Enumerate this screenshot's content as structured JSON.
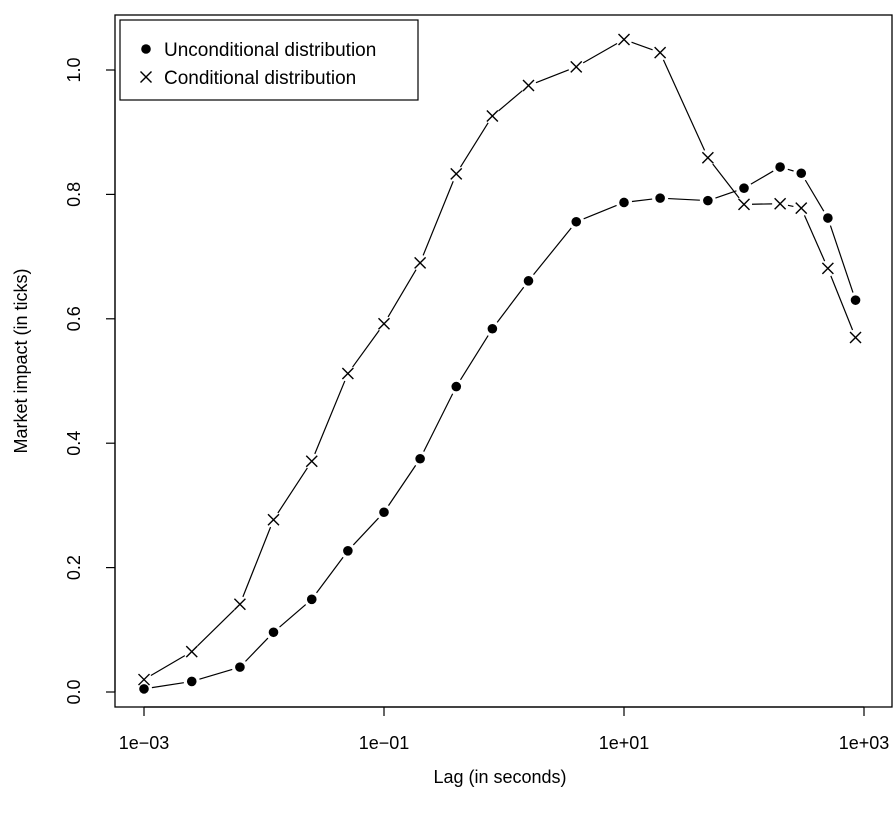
{
  "chart_data": {
    "type": "line",
    "xlabel": "Lag (in seconds)",
    "ylabel": "Market impact (in ticks)",
    "x_scale": "log10",
    "xlim": [
      0.001,
      1000
    ],
    "ylim": [
      0,
      1.05
    ],
    "x_ticks": [
      0.001,
      0.1,
      10,
      1000
    ],
    "x_tick_labels": [
      "1e−03",
      "1e−01",
      "1e+01",
      "1e+03"
    ],
    "y_ticks": [
      0.0,
      0.2,
      0.4,
      0.6,
      0.8,
      1.0
    ],
    "y_tick_labels": [
      "0.0",
      "0.2",
      "0.4",
      "0.6",
      "0.8",
      "1.0"
    ],
    "legend_position": "top-left",
    "grid": false,
    "series": [
      {
        "name": "Unconditional distribution",
        "marker": "filled-circle",
        "x": [
          0.001,
          0.0025,
          0.0063,
          0.012,
          0.025,
          0.05,
          0.1,
          0.2,
          0.4,
          0.8,
          1.6,
          4,
          10,
          20,
          50,
          100,
          200,
          300,
          500,
          850
        ],
        "y": [
          0.005,
          0.017,
          0.04,
          0.096,
          0.149,
          0.227,
          0.289,
          0.375,
          0.491,
          0.584,
          0.661,
          0.756,
          0.787,
          0.794,
          0.79,
          0.81,
          0.844,
          0.834,
          0.762,
          0.63
        ]
      },
      {
        "name": "Conditional distribution",
        "marker": "cross",
        "x": [
          0.001,
          0.0025,
          0.0063,
          0.012,
          0.025,
          0.05,
          0.1,
          0.2,
          0.4,
          0.8,
          1.6,
          4,
          10,
          20,
          50,
          100,
          200,
          300,
          500,
          850
        ],
        "y": [
          0.02,
          0.065,
          0.141,
          0.277,
          0.371,
          0.512,
          0.592,
          0.69,
          0.833,
          0.926,
          0.975,
          1.005,
          1.049,
          1.028,
          0.859,
          0.784,
          0.785,
          0.778,
          0.681,
          0.57
        ]
      }
    ]
  }
}
